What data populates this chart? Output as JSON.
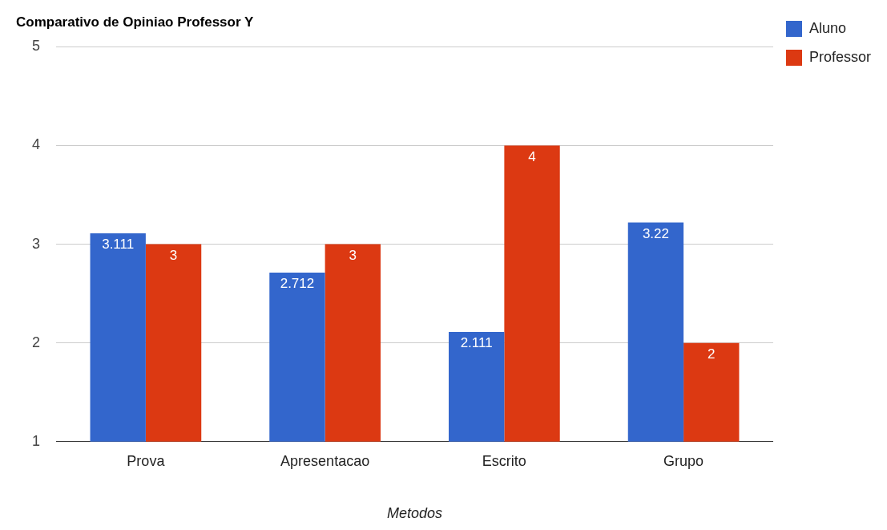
{
  "chart_data": {
    "type": "bar",
    "title": "Comparativo de Opiniao Professor Y",
    "xlabel": "Metodos",
    "categories": [
      "Prova",
      "Apresentacao",
      "Escrito",
      "Grupo"
    ],
    "series": [
      {
        "name": "Aluno",
        "color": "#3366cc",
        "values": [
          3.111,
          2.712,
          2.111,
          3.22
        ]
      },
      {
        "name": "Professor",
        "color": "#dc3912",
        "values": [
          3,
          3,
          4,
          2
        ]
      }
    ],
    "ylim": [
      1,
      5
    ],
    "yticks": [
      1,
      2,
      3,
      4,
      5
    ],
    "grid": "y",
    "legend": "top right",
    "data_labels": true
  }
}
